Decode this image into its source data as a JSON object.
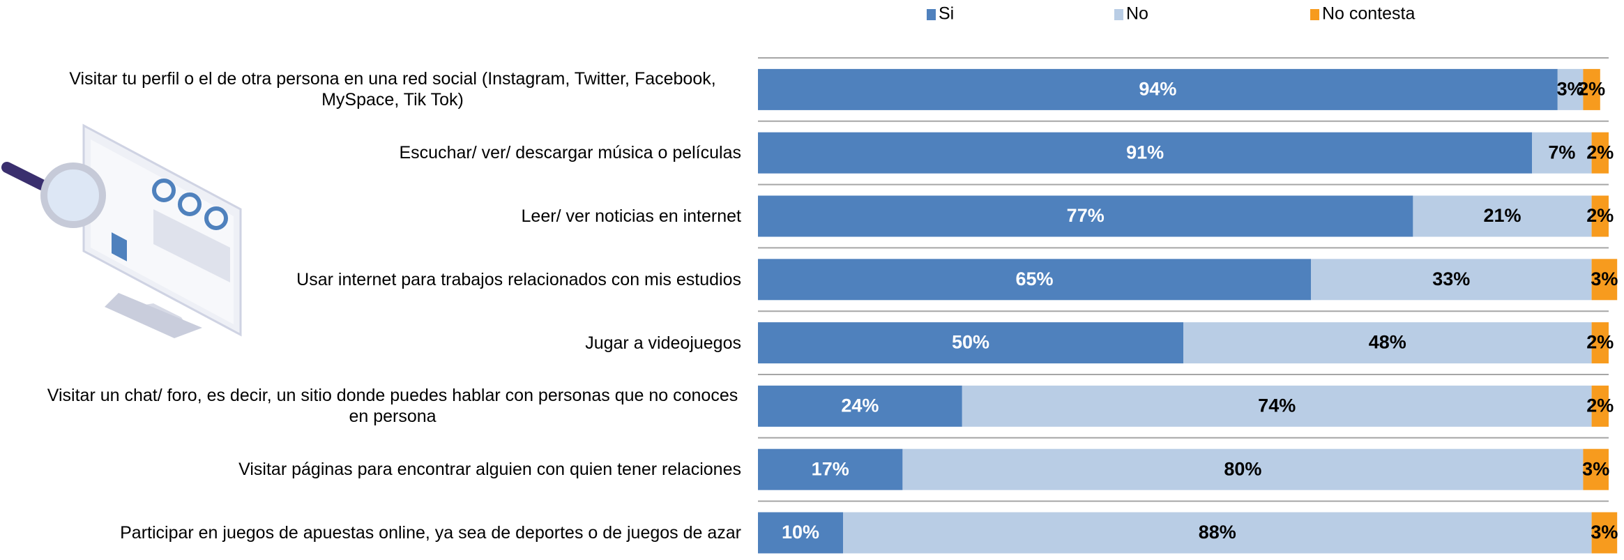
{
  "chart_data": {
    "type": "stacked-bar-horizontal",
    "categories": [
      "Visitar tu perfil o el de otra persona en una red social (Instagram, Twitter, Facebook, MySpace, Tik Tok)",
      "Escuchar/ ver/ descargar música o películas",
      "Leer/ ver noticias en internet",
      "Usar internet para trabajos relacionados con mis estudios",
      "Jugar a videojuegos",
      "Visitar un chat/ foro, es decir, un sitio donde puedes hablar con personas que no conoces en persona",
      "Visitar páginas para encontrar alguien con quien tener relaciones",
      "Participar en juegos de apuestas online, ya sea de deportes o de juegos de azar"
    ],
    "series": [
      {
        "name": "Si",
        "color": "#4f81bd",
        "label_color": "#ffffff",
        "values": [
          94,
          91,
          77,
          65,
          50,
          24,
          17,
          10
        ],
        "value_labels": [
          "94%",
          "91%",
          "77%",
          "65%",
          "50%",
          "24%",
          "17%",
          "10%"
        ]
      },
      {
        "name": "No",
        "color": "#b9cde5",
        "label_color": "#000000",
        "values": [
          3,
          7,
          21,
          33,
          48,
          74,
          80,
          88
        ],
        "value_labels": [
          "3%",
          "7%",
          "21%",
          "33%",
          "48%",
          "74%",
          "80%",
          "88%"
        ]
      },
      {
        "name": "No contesta",
        "color": "#f79b1e",
        "label_color": "#000000",
        "values": [
          2,
          2,
          2,
          3,
          2,
          2,
          3,
          3
        ],
        "value_labels": [
          "2%",
          "2%",
          "2%",
          "3%",
          "2%",
          "2%",
          "3%",
          "3%"
        ]
      }
    ],
    "xlim": [
      0,
      100
    ],
    "legend": "top"
  }
}
